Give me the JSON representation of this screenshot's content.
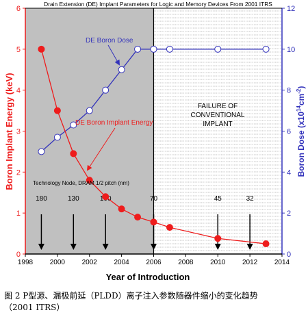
{
  "caption": {
    "line1": "图 2 P型源、漏极前延（PLDD）离子注入参数随器件缩小的变化趋势",
    "line2": "（2001 ITRS）"
  },
  "chart_data": {
    "type": "line",
    "title": "Drain Extension (DE) Implant Parameters for Logic and Memory Devices From 2001 ITRS",
    "xlabel": "Year of Introduction",
    "ylabel_left": "Boron Implant Energy (keV)",
    "ylabel_right_main": "Boron Dose (x10",
    "ylabel_right_sup1": "14",
    "ylabel_right_mid": "cm",
    "ylabel_right_sup2": "-2",
    "ylabel_right_end": ")",
    "xlim": [
      1998,
      2014
    ],
    "ylim_left": [
      0,
      6
    ],
    "ylim_right": [
      0,
      12
    ],
    "x_ticks": [
      "1998",
      "2000",
      "2002",
      "2004",
      "2006",
      "2008",
      "2010",
      "2012",
      "2014"
    ],
    "y_ticks_left": [
      "0",
      "1",
      "2",
      "3",
      "4",
      "5",
      "6"
    ],
    "y_ticks_right": [
      "0",
      "2",
      "4",
      "6",
      "8",
      "10",
      "12"
    ],
    "series": [
      {
        "name": "DE Boron Implant Energy",
        "axis": "left",
        "color": "#ee1c1c",
        "x": [
          1999,
          2000,
          2001,
          2002,
          2003,
          2004,
          2005,
          2006,
          2007,
          2010,
          2013
        ],
        "values": [
          5.0,
          3.5,
          2.45,
          1.8,
          1.4,
          1.1,
          0.9,
          0.78,
          0.65,
          0.38,
          0.25
        ]
      },
      {
        "name": "DE Boron Dose",
        "axis": "right",
        "color": "#3333bb",
        "x": [
          1999,
          2000,
          2001,
          2002,
          2003,
          2004,
          2005,
          2006,
          2007,
          2010,
          2013
        ],
        "values": [
          5.0,
          5.7,
          6.3,
          7.0,
          8.0,
          9.0,
          10.0,
          10.0,
          10.0,
          10.0,
          10.0
        ]
      }
    ],
    "regions": {
      "grey_color": "#c0c0c0",
      "boundary_year": 2006,
      "failure_label": [
        "FAILURE OF",
        "CONVENTIONAL",
        "IMPLANT"
      ]
    },
    "technology_node": {
      "label": "Technology Node, DRAM 1/2 pitch (nm)",
      "nodes": [
        {
          "year": 1999,
          "value": "180"
        },
        {
          "year": 2001,
          "value": "130"
        },
        {
          "year": 2003,
          "value": "100"
        },
        {
          "year": 2006,
          "value": "70"
        },
        {
          "year": 2010,
          "value": "45"
        },
        {
          "year": 2012,
          "value": "32"
        }
      ]
    },
    "grid": false
  }
}
